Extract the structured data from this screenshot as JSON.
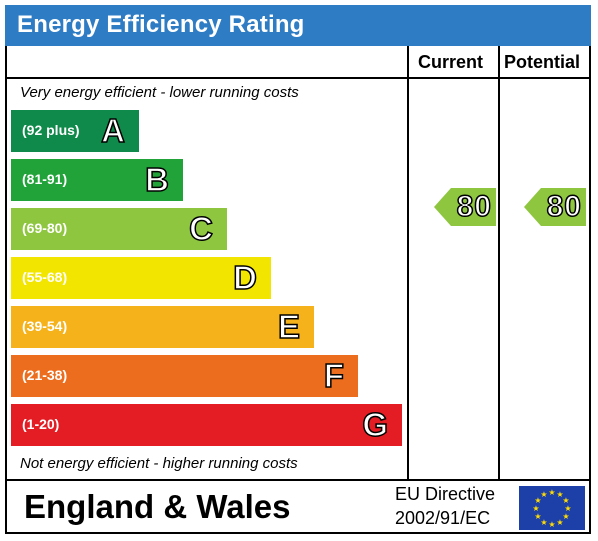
{
  "title": "Energy Efficiency Rating",
  "columns": {
    "current": "Current",
    "potential": "Potential"
  },
  "top_note": "Very energy efficient - lower running costs",
  "bottom_note": "Not energy efficient - higher running costs",
  "bands": [
    {
      "range": "(92 plus)",
      "letter": "A",
      "color": "#0f8a4a"
    },
    {
      "range": "(81-91)",
      "letter": "B",
      "color": "#22a33a"
    },
    {
      "range": "(69-80)",
      "letter": "C",
      "color": "#8ec63f"
    },
    {
      "range": "(55-68)",
      "letter": "D",
      "color": "#f2e600"
    },
    {
      "range": "(39-54)",
      "letter": "E",
      "color": "#f6b21a"
    },
    {
      "range": "(21-38)",
      "letter": "F",
      "color": "#ec6d1d"
    },
    {
      "range": "(1-20)",
      "letter": "G",
      "color": "#e31d23"
    }
  ],
  "current": {
    "value": "80",
    "band": "C",
    "color": "#8ec63f"
  },
  "potential": {
    "value": "80",
    "band": "C",
    "color": "#8ec63f"
  },
  "footer": {
    "region": "England & Wales",
    "directive_line1": "EU Directive",
    "directive_line2": "2002/91/EC"
  },
  "flag": {
    "icon": "eu-flag-icon",
    "background": "#1d3fa8",
    "stars": "#ffdd00"
  }
}
